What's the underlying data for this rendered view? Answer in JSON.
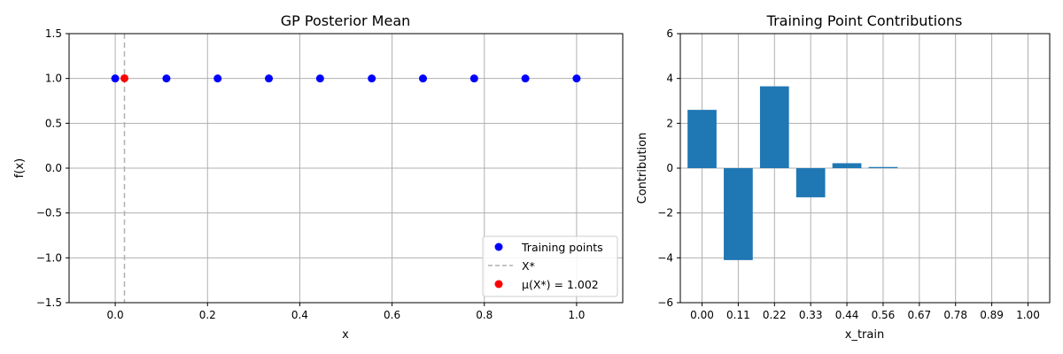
{
  "chart_data": [
    {
      "type": "scatter",
      "title": "GP Posterior Mean",
      "xlabel": "x",
      "ylabel": "f(x)",
      "xlim": [
        -0.1,
        1.1
      ],
      "ylim": [
        -1.5,
        1.5
      ],
      "xticks": [
        "0.0",
        "0.2",
        "0.4",
        "0.6",
        "0.8",
        "1.0"
      ],
      "yticks": [
        "1.5",
        "1.0",
        "0.5",
        "0.0",
        "−0.5",
        "−1.0",
        "−1.5"
      ],
      "grid": true,
      "legend_position": "bottom-right",
      "series": [
        {
          "name": "Training points",
          "kind": "points",
          "color": "#0000ff",
          "x": [
            0.0,
            0.111,
            0.222,
            0.333,
            0.444,
            0.556,
            0.667,
            0.778,
            0.889,
            1.0
          ],
          "y": [
            1.0,
            1.0,
            1.0,
            1.0,
            1.0,
            1.0,
            1.0,
            1.0,
            1.0,
            1.0
          ]
        },
        {
          "name": "X*",
          "kind": "vline",
          "color": "#b0b0b0",
          "x": 0.02
        },
        {
          "name": "μ(X*) = 1.002",
          "kind": "points",
          "color": "#ff0000",
          "x": [
            0.02
          ],
          "y": [
            1.002
          ]
        }
      ]
    },
    {
      "type": "bar",
      "title": "Training Point Contributions",
      "xlabel": "x_train",
      "ylabel": "Contribution",
      "ylim": [
        -6,
        6
      ],
      "yticks": [
        "6",
        "4",
        "2",
        "0",
        "−2",
        "−4",
        "−6"
      ],
      "grid": true,
      "bar_color": "#1f77b4",
      "categories": [
        "0.00",
        "0.11",
        "0.22",
        "0.33",
        "0.44",
        "0.56",
        "0.67",
        "0.78",
        "0.89",
        "1.00"
      ],
      "values": [
        2.6,
        -4.1,
        3.65,
        -1.3,
        0.22,
        0.05,
        0.0,
        0.0,
        0.0,
        0.0
      ]
    }
  ]
}
